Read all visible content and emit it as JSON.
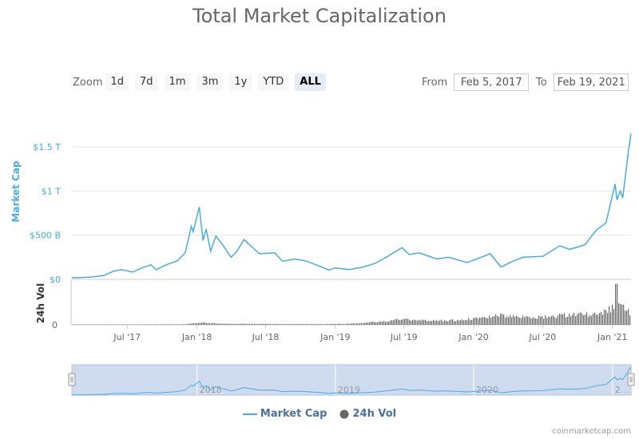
{
  "title": "Total Market Capitalization",
  "zoom": {
    "label": "Zoom",
    "buttons": [
      "1d",
      "7d",
      "1m",
      "3m",
      "1y",
      "YTD",
      "ALL"
    ],
    "active": "ALL"
  },
  "range": {
    "from_label": "From",
    "from_value": "Feb 5, 2017",
    "to_label": "To",
    "to_value": "Feb 19, 2021"
  },
  "legend": {
    "market_cap": "Market Cap",
    "volume": "24h Vol"
  },
  "credit": "coinmarketcap.com",
  "colors": {
    "market_cap": "#4aabdf",
    "volume": "#666666",
    "navigator_fill": "#cfdcf0"
  },
  "chart_data": {
    "type": "line",
    "y_axis": {
      "label": "Market Cap",
      "ticks": [
        {
          "value": 0,
          "label": "$0"
        },
        {
          "value": 500,
          "label": "$500 B"
        },
        {
          "value": 1000,
          "label": "$1 T"
        },
        {
          "value": 1500,
          "label": "$1.5 T"
        }
      ],
      "unit": "B USD"
    },
    "volume_axis": {
      "label": "24h Vol",
      "ticks": [
        {
          "value": 0,
          "label": "0"
        }
      ]
    },
    "x_axis": {
      "range": [
        "2017-02-05",
        "2021-02-19"
      ],
      "ticks": [
        {
          "date": "2017-07-01",
          "label": "Jul '17"
        },
        {
          "date": "2018-01-01",
          "label": "Jan '18"
        },
        {
          "date": "2018-07-01",
          "label": "Jul '18"
        },
        {
          "date": "2019-01-01",
          "label": "Jan '19"
        },
        {
          "date": "2019-07-01",
          "label": "Jul '19"
        },
        {
          "date": "2020-01-01",
          "label": "Jan '20"
        },
        {
          "date": "2020-07-01",
          "label": "Jul '20"
        },
        {
          "date": "2021-01-01",
          "label": "Jan '21"
        }
      ]
    },
    "navigator_labels": [
      {
        "date": "2018-01-01",
        "label": "2018"
      },
      {
        "date": "2019-01-01",
        "label": "2019"
      },
      {
        "date": "2020-01-01",
        "label": "2020"
      },
      {
        "date": "2021-01-01",
        "label": "2..."
      }
    ],
    "series": [
      {
        "name": "Market Cap",
        "points": [
          [
            "2017-02-05",
            18
          ],
          [
            "2017-03-01",
            20
          ],
          [
            "2017-04-01",
            27
          ],
          [
            "2017-05-01",
            45
          ],
          [
            "2017-05-25",
            90
          ],
          [
            "2017-06-15",
            110
          ],
          [
            "2017-07-15",
            82
          ],
          [
            "2017-08-10",
            130
          ],
          [
            "2017-09-01",
            165
          ],
          [
            "2017-09-15",
            110
          ],
          [
            "2017-10-15",
            170
          ],
          [
            "2017-11-10",
            210
          ],
          [
            "2017-12-01",
            300
          ],
          [
            "2017-12-17",
            600
          ],
          [
            "2017-12-22",
            540
          ],
          [
            "2018-01-07",
            820
          ],
          [
            "2018-01-17",
            440
          ],
          [
            "2018-01-25",
            570
          ],
          [
            "2018-02-06",
            320
          ],
          [
            "2018-02-20",
            490
          ],
          [
            "2018-03-10",
            390
          ],
          [
            "2018-04-01",
            250
          ],
          [
            "2018-04-15",
            310
          ],
          [
            "2018-05-05",
            450
          ],
          [
            "2018-05-20",
            390
          ],
          [
            "2018-06-15",
            290
          ],
          [
            "2018-07-25",
            300
          ],
          [
            "2018-08-15",
            205
          ],
          [
            "2018-09-15",
            230
          ],
          [
            "2018-10-15",
            210
          ],
          [
            "2018-11-20",
            150
          ],
          [
            "2018-12-15",
            105
          ],
          [
            "2019-01-01",
            130
          ],
          [
            "2019-02-07",
            110
          ],
          [
            "2019-03-15",
            140
          ],
          [
            "2019-04-15",
            180
          ],
          [
            "2019-05-15",
            250
          ],
          [
            "2019-06-26",
            360
          ],
          [
            "2019-07-15",
            280
          ],
          [
            "2019-08-10",
            300
          ],
          [
            "2019-09-26",
            230
          ],
          [
            "2019-10-26",
            250
          ],
          [
            "2019-12-15",
            190
          ],
          [
            "2020-02-14",
            290
          ],
          [
            "2020-03-13",
            140
          ],
          [
            "2020-04-10",
            200
          ],
          [
            "2020-05-10",
            250
          ],
          [
            "2020-07-01",
            260
          ],
          [
            "2020-08-15",
            380
          ],
          [
            "2020-09-10",
            340
          ],
          [
            "2020-10-20",
            390
          ],
          [
            "2020-11-20",
            560
          ],
          [
            "2020-12-15",
            640
          ],
          [
            "2021-01-08",
            1080
          ],
          [
            "2021-01-13",
            900
          ],
          [
            "2021-01-22",
            1000
          ],
          [
            "2021-01-28",
            920
          ],
          [
            "2021-02-05",
            1200
          ],
          [
            "2021-02-12",
            1450
          ],
          [
            "2021-02-19",
            1650
          ]
        ]
      },
      {
        "name": "24h Vol",
        "type": "bar",
        "note_values_relative": true,
        "points": [
          [
            "2017-02-05",
            0.1
          ],
          [
            "2017-12-01",
            0.5
          ],
          [
            "2018-01-07",
            2.0
          ],
          [
            "2018-03-01",
            1.0
          ],
          [
            "2018-07-01",
            0.8
          ],
          [
            "2018-12-01",
            0.6
          ],
          [
            "2019-03-01",
            1.2
          ],
          [
            "2019-06-26",
            4.5
          ],
          [
            "2019-09-01",
            3.5
          ],
          [
            "2019-12-01",
            4.0
          ],
          [
            "2020-03-13",
            8.0
          ],
          [
            "2020-06-01",
            6.0
          ],
          [
            "2020-09-01",
            8.5
          ],
          [
            "2020-11-20",
            9.0
          ],
          [
            "2021-01-08",
            15.0
          ],
          [
            "2021-01-11",
            28.0
          ],
          [
            "2021-02-01",
            12.0
          ],
          [
            "2021-02-19",
            10.0
          ]
        ]
      }
    ]
  }
}
